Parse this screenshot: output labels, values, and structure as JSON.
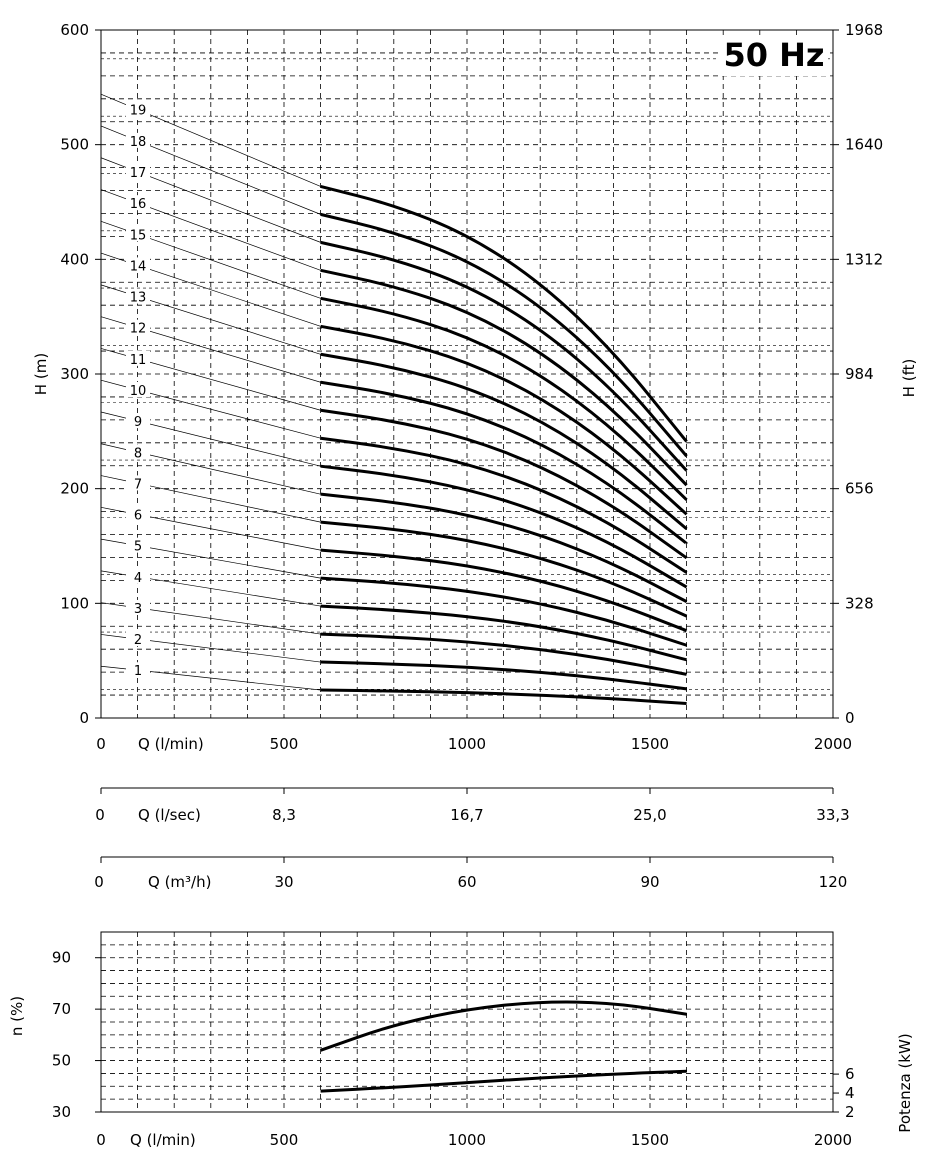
{
  "chart_data": [
    {
      "type": "line",
      "title": "50 Hz",
      "xlabel": "Q (l/min)",
      "ylabel": "H (m)",
      "ylabel_right": "H (ft)",
      "xlim": [
        0,
        2000
      ],
      "ylim": [
        0,
        600
      ],
      "x_ticks": [
        0,
        500,
        1000,
        1500,
        2000
      ],
      "y_ticks": [
        0,
        100,
        200,
        300,
        400,
        500,
        600
      ],
      "y_right_ticks": [
        "0",
        "328",
        "656",
        "984",
        "1312",
        "1640",
        "1968"
      ],
      "grid": true,
      "stage_curve_x": [
        600,
        800,
        1000,
        1200,
        1400,
        1600
      ],
      "stage_curve_shape": [
        1.0,
        0.965,
        0.91,
        0.82,
        0.69,
        0.52
      ],
      "stage_head_at_600": 24.4,
      "stage_labels": [
        "1",
        "2",
        "3",
        "4",
        "5",
        "6",
        "7",
        "8",
        "9",
        "10",
        "11",
        "12",
        "13",
        "14",
        "15",
        "16",
        "17",
        "18",
        "19"
      ],
      "extra_axes": [
        {
          "label": "Q (l/sec)",
          "zero": "0",
          "ticks": [
            "8,3",
            "16,7",
            "25,0",
            "33,3"
          ]
        },
        {
          "label": "Q (m³/h)",
          "zero": "0",
          "ticks": [
            "30",
            "60",
            "90",
            "120"
          ]
        }
      ]
    },
    {
      "type": "line",
      "xlabel": "Q (l/min)",
      "ylabel": "n (%)",
      "ylabel_right": "Potenza (kW)",
      "xlim": [
        0,
        2000
      ],
      "ylim": [
        30,
        100
      ],
      "x_ticks": [
        0,
        500,
        1000,
        1500,
        2000
      ],
      "y_ticks": [
        30,
        50,
        70,
        90
      ],
      "y_right_ticks": [
        {
          "value": 2,
          "label": "2"
        },
        {
          "value": 4,
          "label": "4"
        },
        {
          "value": 6,
          "label": "6"
        }
      ],
      "y_right_lim": [
        2,
        21
      ],
      "series": [
        {
          "name": "n (%)",
          "x": [
            600,
            800,
            1000,
            1200,
            1400,
            1600
          ],
          "values": [
            54,
            64,
            70,
            73,
            72.5,
            68
          ]
        },
        {
          "name": "Potenza (kW)",
          "x": [
            600,
            800,
            1000,
            1200,
            1400,
            1600
          ],
          "values": [
            4.2,
            4.6,
            5.1,
            5.6,
            6.0,
            6.3
          ]
        }
      ]
    }
  ]
}
